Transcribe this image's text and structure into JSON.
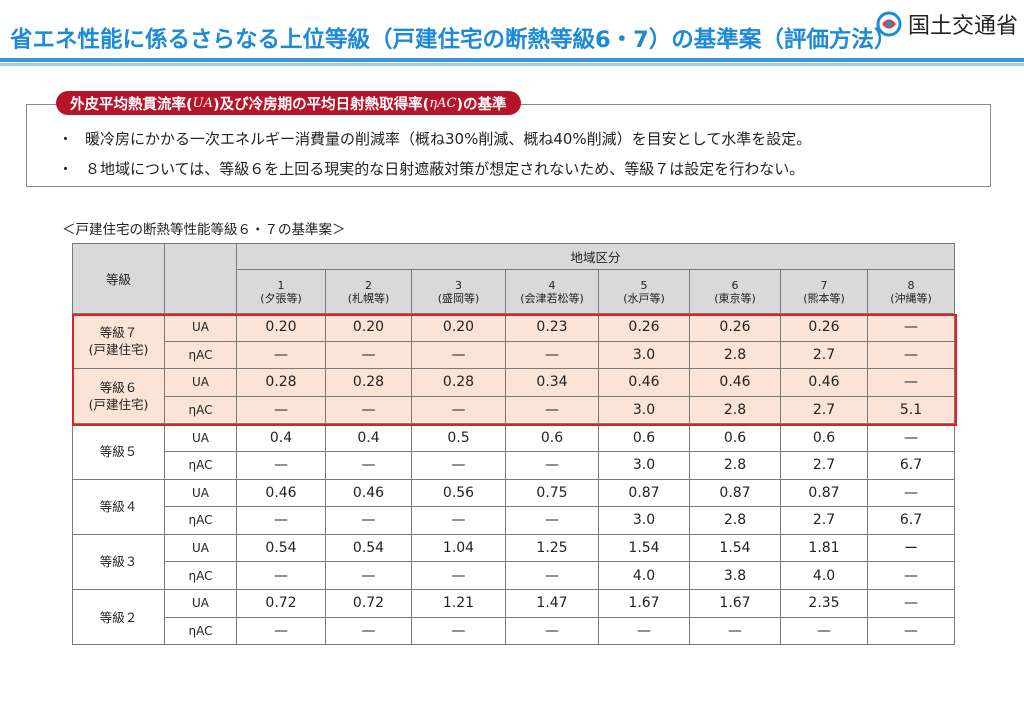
{
  "title": "省エネ性能に係るさらなる上位等級（戸建住宅の断熱等級6・7）の基準案（評価方法）",
  "logo": {
    "org": "国土交通省",
    "icon": "mlit-logo-icon"
  },
  "box": {
    "label_prefix": "外皮平均熱貫流率(",
    "label_ua": "U",
    "label_ua_sub": "A",
    "label_mid": ")及び冷房期の平均日射熱取得率(",
    "label_eta": "η",
    "label_eta_sub": "AC",
    "label_suffix": ")の基準",
    "bullets": [
      {
        "mark": "・",
        "text": "暖冷房にかかる一次エネルギー消費量の削減率（概ね30%削減、概ね40%削減）を目安として水準を設定。"
      },
      {
        "mark": "・",
        "text": "８地域については、等級６を上回る現実的な日射遮蔽対策が想定されないため、等級７は設定を行わない。"
      }
    ]
  },
  "caption": "＜戸建住宅の断熱等性能等級６・７の基準案＞",
  "table": {
    "grade_header": "等級",
    "region_header": "地域区分",
    "regions": [
      {
        "num": "1",
        "name": "(夕張等)"
      },
      {
        "num": "2",
        "name": "(札幌等)"
      },
      {
        "num": "3",
        "name": "(盛岡等)"
      },
      {
        "num": "4",
        "name": "(会津若松等)"
      },
      {
        "num": "5",
        "name": "(水戸等)"
      },
      {
        "num": "6",
        "name": "(東京等)"
      },
      {
        "num": "7",
        "name": "(熊本等)"
      },
      {
        "num": "8",
        "name": "(沖縄等)"
      }
    ],
    "grades": [
      {
        "label1": "等級７",
        "label2": "(戸建住宅)",
        "highlight": true,
        "rows": [
          {
            "ind": "UA",
            "values": [
              "0.20",
              "0.20",
              "0.20",
              "0.23",
              "0.26",
              "0.26",
              "0.26",
              "—"
            ]
          },
          {
            "ind": "ηAC",
            "values": [
              "—",
              "—",
              "—",
              "—",
              "3.0",
              "2.8",
              "2.7",
              "—"
            ]
          }
        ]
      },
      {
        "label1": "等級６",
        "label2": "(戸建住宅)",
        "highlight": true,
        "rows": [
          {
            "ind": "UA",
            "values": [
              "0.28",
              "0.28",
              "0.28",
              "0.34",
              "0.46",
              "0.46",
              "0.46",
              "—"
            ]
          },
          {
            "ind": "ηAC",
            "values": [
              "—",
              "—",
              "—",
              "—",
              "3.0",
              "2.8",
              "2.7",
              "5.1"
            ]
          }
        ]
      },
      {
        "label1": "等級５",
        "label2": "",
        "highlight": false,
        "rows": [
          {
            "ind": "UA",
            "values": [
              "0.4",
              "0.4",
              "0.5",
              "0.6",
              "0.6",
              "0.6",
              "0.6",
              "—"
            ]
          },
          {
            "ind": "ηAC",
            "values": [
              "—",
              "—",
              "—",
              "—",
              "3.0",
              "2.8",
              "2.7",
              "6.7"
            ]
          }
        ]
      },
      {
        "label1": "等級４",
        "label2": "",
        "highlight": false,
        "rows": [
          {
            "ind": "UA",
            "values": [
              "0.46",
              "0.46",
              "0.56",
              "0.75",
              "0.87",
              "0.87",
              "0.87",
              "—"
            ]
          },
          {
            "ind": "ηAC",
            "values": [
              "—",
              "—",
              "—",
              "—",
              "3.0",
              "2.8",
              "2.7",
              "6.7"
            ]
          }
        ]
      },
      {
        "label1": "等級３",
        "label2": "",
        "highlight": false,
        "rows": [
          {
            "ind": "UA",
            "values": [
              "0.54",
              "0.54",
              "1.04",
              "1.25",
              "1.54",
              "1.54",
              "1.81",
              "ー"
            ]
          },
          {
            "ind": "ηAC",
            "values": [
              "—",
              "—",
              "—",
              "—",
              "4.0",
              "3.8",
              "4.0",
              "—"
            ]
          }
        ]
      },
      {
        "label1": "等級２",
        "label2": "",
        "highlight": false,
        "rows": [
          {
            "ind": "UA",
            "values": [
              "0.72",
              "0.72",
              "1.21",
              "1.47",
              "1.67",
              "1.67",
              "2.35",
              "—"
            ]
          },
          {
            "ind": "ηAC",
            "values": [
              "—",
              "—",
              "—",
              "—",
              "—",
              "—",
              "—",
              "—"
            ]
          }
        ]
      }
    ]
  },
  "colors": {
    "title": "#1d8ad6",
    "label_bg": "#b6142a",
    "highlight_bg": "#fbe3d6",
    "highlight_border": "#e02020"
  }
}
